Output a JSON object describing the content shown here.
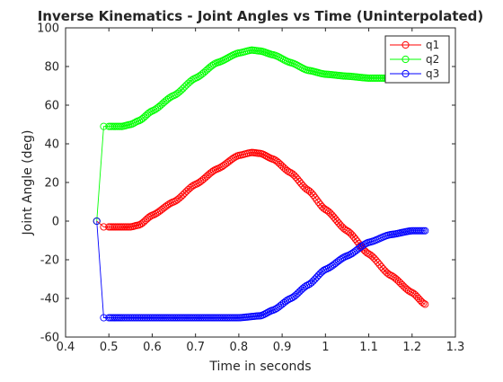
{
  "chart_data": {
    "type": "line",
    "title": "Inverse Kinematics - Joint Angles vs Time (Uninterpolated)",
    "xlabel": "Time in seconds",
    "ylabel": "Joint Angle (deg)",
    "xlim": [
      0.4,
      1.3
    ],
    "ylim": [
      -60,
      100
    ],
    "xticks": [
      0.4,
      0.5,
      0.6,
      0.7,
      0.8,
      0.9,
      1.0,
      1.1,
      1.2,
      1.3
    ],
    "xtick_labels": [
      "0.4",
      "0.5",
      "0.6",
      "0.7",
      "0.8",
      "0.9",
      "1",
      "1.1",
      "1.2",
      "1.3"
    ],
    "yticks": [
      -60,
      -40,
      -20,
      0,
      20,
      40,
      60,
      80,
      100
    ],
    "ytick_labels": [
      "-60",
      "-40",
      "-20",
      "0",
      "20",
      "40",
      "60",
      "80",
      "100"
    ],
    "grid": false,
    "legend": {
      "position": "top-right",
      "entries": [
        "q1",
        "q2",
        "q3"
      ]
    },
    "marker": "circle",
    "series": [
      {
        "name": "q1",
        "color": "#ff0000",
        "points": [
          [
            0.472,
            0
          ],
          [
            0.488,
            -3
          ],
          [
            0.5,
            -3
          ],
          [
            0.53,
            -3
          ],
          [
            0.55,
            -3
          ],
          [
            0.57,
            -2
          ],
          [
            0.6,
            3
          ],
          [
            0.65,
            10
          ],
          [
            0.7,
            19
          ],
          [
            0.75,
            27
          ],
          [
            0.8,
            34
          ],
          [
            0.83,
            35.5
          ],
          [
            0.85,
            35
          ],
          [
            0.88,
            32
          ],
          [
            0.92,
            25
          ],
          [
            0.96,
            16
          ],
          [
            1.0,
            6
          ],
          [
            1.05,
            -5
          ],
          [
            1.1,
            -17
          ],
          [
            1.15,
            -28
          ],
          [
            1.2,
            -37
          ],
          [
            1.23,
            -43
          ]
        ]
      },
      {
        "name": "q2",
        "color": "#00ff00",
        "points": [
          [
            0.472,
            0
          ],
          [
            0.488,
            49
          ],
          [
            0.5,
            49
          ],
          [
            0.53,
            49
          ],
          [
            0.55,
            50
          ],
          [
            0.57,
            52
          ],
          [
            0.6,
            57
          ],
          [
            0.65,
            65
          ],
          [
            0.7,
            74
          ],
          [
            0.75,
            82
          ],
          [
            0.8,
            87
          ],
          [
            0.83,
            88.5
          ],
          [
            0.85,
            88
          ],
          [
            0.88,
            86
          ],
          [
            0.92,
            82
          ],
          [
            0.96,
            78
          ],
          [
            1.0,
            76
          ],
          [
            1.05,
            75
          ],
          [
            1.1,
            74
          ],
          [
            1.15,
            74
          ],
          [
            1.2,
            74
          ],
          [
            1.23,
            74
          ]
        ]
      },
      {
        "name": "q3",
        "color": "#0000ff",
        "points": [
          [
            0.472,
            0
          ],
          [
            0.488,
            -50
          ],
          [
            0.5,
            -50
          ],
          [
            0.53,
            -50
          ],
          [
            0.6,
            -50
          ],
          [
            0.7,
            -50
          ],
          [
            0.8,
            -50
          ],
          [
            0.85,
            -49
          ],
          [
            0.88,
            -46
          ],
          [
            0.92,
            -40
          ],
          [
            0.96,
            -33
          ],
          [
            1.0,
            -25
          ],
          [
            1.05,
            -18
          ],
          [
            1.1,
            -11
          ],
          [
            1.15,
            -7
          ],
          [
            1.2,
            -5
          ],
          [
            1.23,
            -5
          ]
        ]
      }
    ]
  }
}
